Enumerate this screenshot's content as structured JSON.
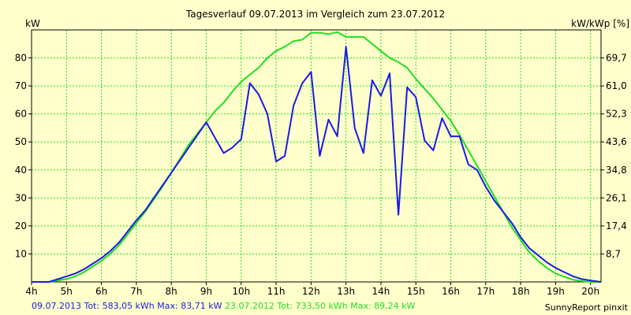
{
  "chart_data": {
    "type": "line",
    "title": "Tagesverlauf 09.07.2013 im Vergleich zum 23.07.2012",
    "ylabel_left": "kW",
    "ylabel_right": "kW/kWp [%]",
    "xlim": [
      4,
      20.3
    ],
    "ylim": [
      0,
      90
    ],
    "x_ticks": [
      "4h",
      "5h",
      "6h",
      "7h",
      "8h",
      "9h",
      "10h",
      "11h",
      "12h",
      "13h",
      "14h",
      "15h",
      "16h",
      "17h",
      "18h",
      "19h",
      "20h"
    ],
    "y_ticks": [
      "10",
      "20",
      "30",
      "40",
      "50",
      "60",
      "70",
      "80"
    ],
    "y_ticks_right": [
      "8,7",
      "17,4",
      "26,1",
      "34,8",
      "43,6",
      "52,3",
      "61,0",
      "69,7"
    ],
    "grid": true,
    "colors": {
      "series1": "#1a1ae6",
      "series2": "#22dd22",
      "grid": "#22dd22",
      "background": "#ffffcc"
    },
    "series": [
      {
        "name": "09.07.2013",
        "x": [
          4.0,
          4.5,
          5.0,
          5.25,
          5.5,
          5.75,
          6.0,
          6.25,
          6.5,
          6.75,
          7.0,
          7.25,
          7.5,
          7.75,
          8.0,
          8.25,
          8.5,
          8.75,
          9.0,
          9.25,
          9.5,
          9.75,
          10.0,
          10.25,
          10.5,
          10.75,
          11.0,
          11.25,
          11.5,
          11.75,
          12.0,
          12.25,
          12.5,
          12.75,
          13.0,
          13.25,
          13.5,
          13.75,
          14.0,
          14.25,
          14.5,
          14.75,
          15.0,
          15.25,
          15.5,
          15.75,
          16.0,
          16.25,
          16.5,
          16.75,
          17.0,
          17.25,
          17.5,
          17.75,
          18.0,
          18.25,
          18.5,
          18.75,
          19.0,
          19.25,
          19.5,
          19.75,
          20.0,
          20.3
        ],
        "values": [
          0,
          0,
          2,
          3,
          4.5,
          6.5,
          8.5,
          11,
          14,
          18,
          22,
          25.5,
          30,
          34.5,
          39,
          43.5,
          48,
          52.5,
          57,
          51.5,
          46,
          48,
          51,
          71,
          67,
          60,
          43,
          45,
          63,
          71,
          75,
          45,
          58,
          52,
          84,
          55,
          46,
          72,
          66.5,
          74.5,
          24,
          69.5,
          66,
          50.5,
          47,
          58.5,
          52,
          52,
          42,
          40,
          34,
          29,
          25,
          21,
          16,
          12,
          9.5,
          7,
          5,
          3.5,
          2,
          1,
          0.5,
          0
        ]
      },
      {
        "name": "23.07.2012",
        "x": [
          4.0,
          4.5,
          5.0,
          5.25,
          5.5,
          5.75,
          6.0,
          6.25,
          6.5,
          6.75,
          7.0,
          7.25,
          7.5,
          7.75,
          8.0,
          8.25,
          8.5,
          8.75,
          9.0,
          9.25,
          9.5,
          9.75,
          10.0,
          10.25,
          10.5,
          10.75,
          11.0,
          11.25,
          11.5,
          11.75,
          12.0,
          12.25,
          12.5,
          12.75,
          13.0,
          13.25,
          13.5,
          13.75,
          14.0,
          14.25,
          14.5,
          14.75,
          15.0,
          15.25,
          15.5,
          15.75,
          16.0,
          16.25,
          16.5,
          16.75,
          17.0,
          17.25,
          17.5,
          17.75,
          18.0,
          18.25,
          18.5,
          18.75,
          19.0,
          19.25,
          19.5,
          19.75,
          20.0,
          20.3
        ],
        "values": [
          0,
          0,
          1,
          2,
          3.5,
          5.5,
          7.5,
          10,
          13,
          17,
          21,
          25,
          29.5,
          34,
          39,
          44,
          49,
          53,
          57,
          61,
          64,
          68,
          71.5,
          74,
          76.5,
          80,
          82.5,
          84,
          86,
          86.5,
          89,
          89,
          88.5,
          89.2,
          87.5,
          87.5,
          87.5,
          85,
          82.5,
          80,
          78.5,
          76.5,
          72.5,
          69,
          65.5,
          61.5,
          57.5,
          52.5,
          47,
          41.5,
          36,
          30.5,
          25,
          19.5,
          15,
          10.5,
          7.5,
          5,
          3,
          1.8,
          0.8,
          0.3,
          0,
          0
        ]
      }
    ]
  },
  "footer": {
    "series1_text": "09.07.2013 Tot: 583,05 kWh Max: 83,71 kW",
    "series2_text": "23.07.2012 Tot: 733,50 kWh Max: 89,24 kW",
    "credit": "SunnyReport pinxit"
  }
}
